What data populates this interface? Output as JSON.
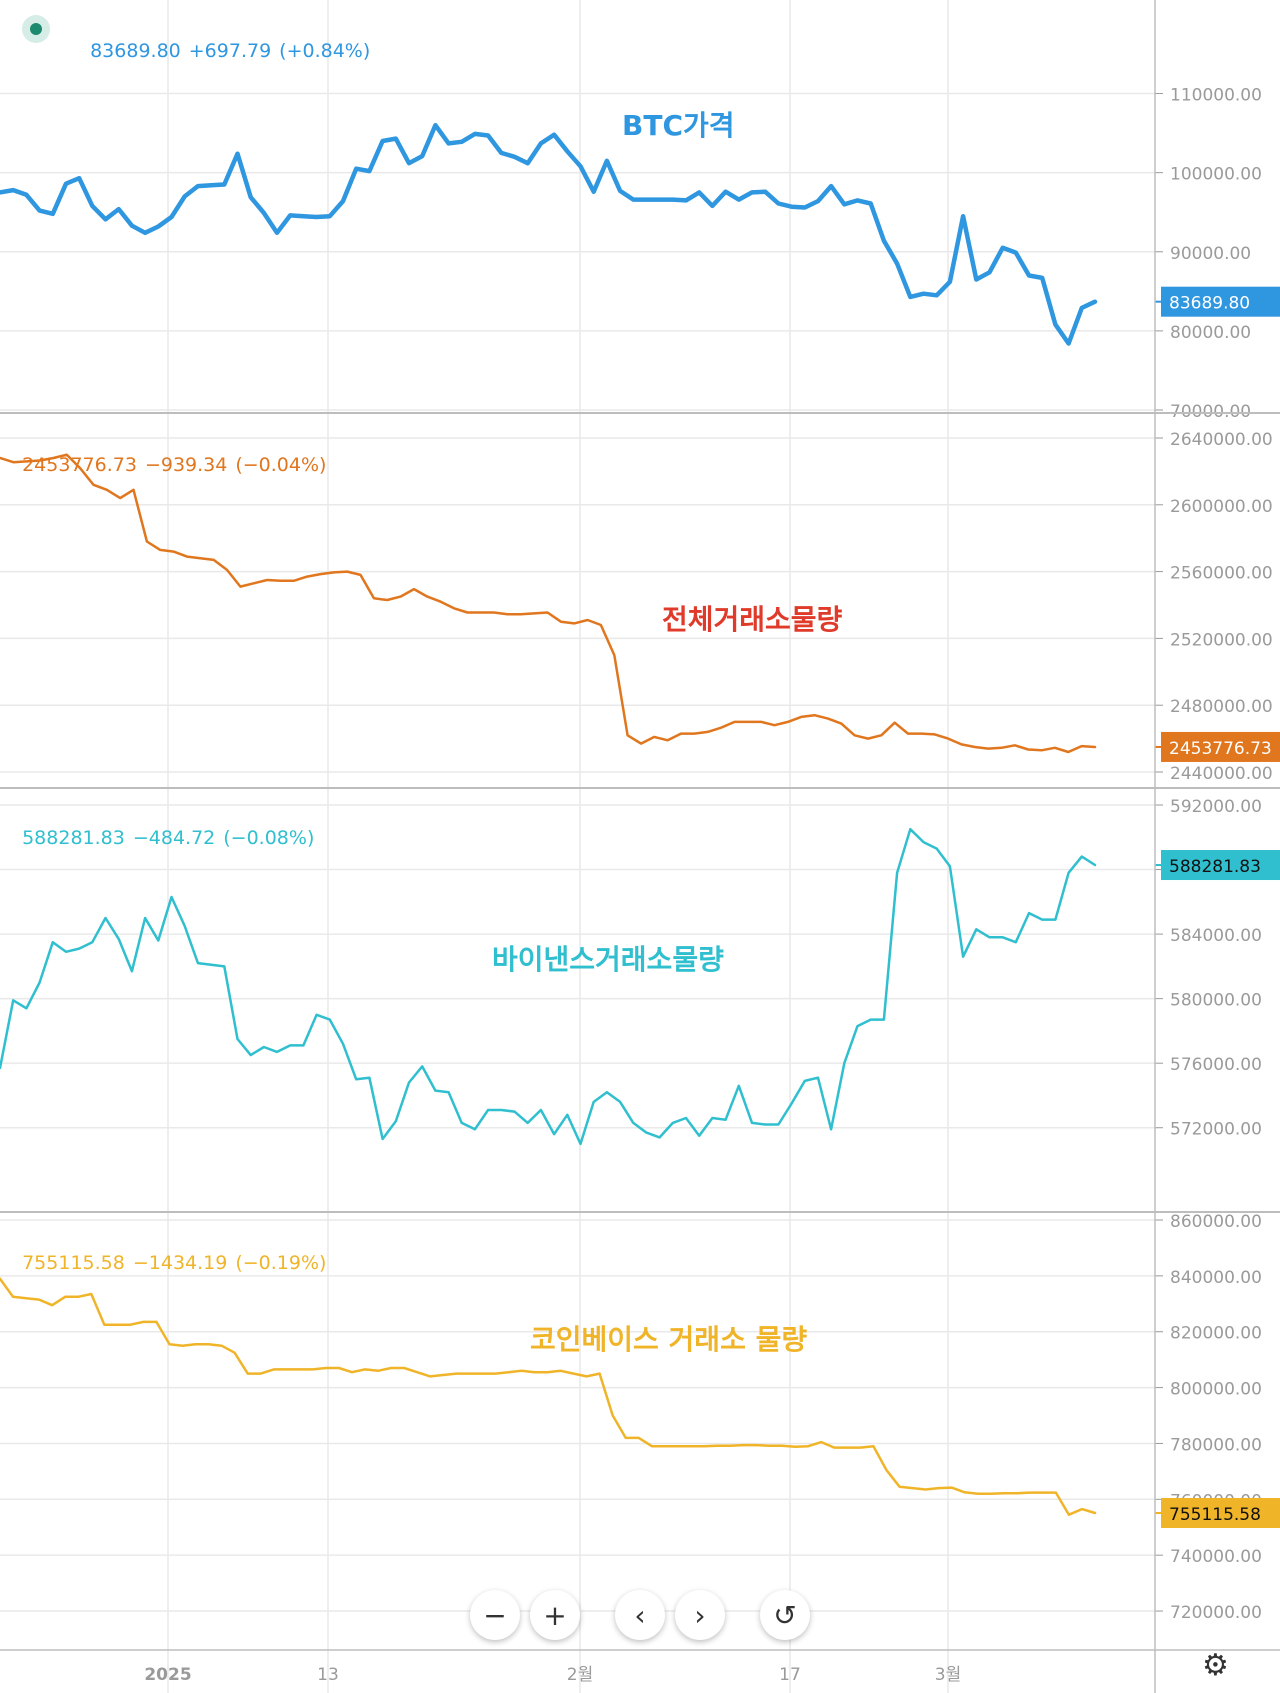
{
  "colors": {
    "btc": "#2f96e0",
    "total": "#e0761e",
    "binance": "#2fbfcf",
    "coinbase": "#f0b429",
    "grid": "#e9e9e9",
    "axis_text": "#9a9a9a",
    "divider": "#bdbdbd"
  },
  "panels": [
    {
      "header": {
        "value": "83689.80",
        "change": "+697.79",
        "pct": "(+0.84%)"
      },
      "annotation": "BTC가격",
      "badge": "83689.80"
    },
    {
      "header": {
        "value": "2453776.73",
        "change": "−939.34",
        "pct": "(−0.04%)"
      },
      "annotation": "전체거래소물량",
      "badge": "2453776.73"
    },
    {
      "header": {
        "value": "588281.83",
        "change": "−484.72",
        "pct": "(−0.08%)"
      },
      "annotation": "바이낸스거래소물량",
      "badge": "588281.83"
    },
    {
      "header": {
        "value": "755115.58",
        "change": "−1434.19",
        "pct": "(−0.19%)"
      },
      "annotation": "코인베이스 거래소 물량",
      "badge": "755115.58"
    }
  ],
  "x_axis_labels": [
    "2025",
    "13",
    "2월",
    "17",
    "3월"
  ],
  "icons": {
    "zoom_out": "minus-icon",
    "zoom_in": "plus-icon",
    "back": "chevron-left-icon",
    "forward": "chevron-right-icon",
    "reset": "reset-icon",
    "settings": "gear-icon"
  },
  "chart_data": [
    {
      "type": "line",
      "series": [
        {
          "name": "BTC가격",
          "color": "#2f96e0"
        }
      ],
      "ylim": [
        70000,
        115000
      ],
      "yticks": [
        "110000.00",
        "100000.00",
        "90000.00",
        "80000.00",
        "70000.00"
      ],
      "ytick_values": [
        110000,
        100000,
        90000,
        80000,
        70000
      ],
      "values": [
        97500,
        97800,
        97200,
        95200,
        94800,
        98600,
        99300,
        95800,
        94100,
        95400,
        93300,
        92400,
        93200,
        94400,
        97000,
        98300,
        98400,
        98500,
        102400,
        96900,
        94900,
        92400,
        94600,
        94500,
        94400,
        94500,
        96400,
        100500,
        100200,
        104000,
        104300,
        101200,
        102100,
        106000,
        103700,
        103900,
        104900,
        104700,
        102500,
        102000,
        101200,
        103700,
        104800,
        102700,
        100800,
        97600,
        101500,
        97700,
        96600,
        96600,
        96600,
        96600,
        96500,
        97500,
        95800,
        97600,
        96600,
        97500,
        97600,
        96100,
        95700,
        95600,
        96400,
        98300,
        96000,
        96500,
        96100,
        91400,
        88500,
        84300,
        84700,
        84500,
        86200,
        94500,
        86500,
        87400,
        90500,
        89900,
        87000,
        86700,
        80800,
        78400,
        82900,
        83690
      ]
    },
    {
      "type": "line",
      "series": [
        {
          "name": "전체거래소물량",
          "color": "#e0761e"
        }
      ],
      "ylim": [
        2440000,
        2640000
      ],
      "yticks": [
        "2640000.00",
        "2600000.00",
        "2560000.00",
        "2520000.00",
        "2480000.00",
        "2440000.00"
      ],
      "ytick_values": [
        2640000,
        2600000,
        2560000,
        2520000,
        2480000,
        2440000
      ],
      "values": [
        2628000,
        2625500,
        2626000,
        2626500,
        2628000,
        2630000,
        2622000,
        2612000,
        2609000,
        2604000,
        2609000,
        2578000,
        2573000,
        2572000,
        2569000,
        2568000,
        2567000,
        2561000,
        2551000,
        2553000,
        2555000,
        2554500,
        2554500,
        2557000,
        2558500,
        2559500,
        2560000,
        2558000,
        2544000,
        2543000,
        2545000,
        2549500,
        2545000,
        2542000,
        2538000,
        2535500,
        2535500,
        2535500,
        2534500,
        2534500,
        2535000,
        2535500,
        2530000,
        2529000,
        2531000,
        2528000,
        2510000,
        2462000,
        2457000,
        2461000,
        2459000,
        2463000,
        2463000,
        2464000,
        2466500,
        2470000,
        2470000,
        2470000,
        2468000,
        2470000,
        2473000,
        2474000,
        2472000,
        2469000,
        2462000,
        2460000,
        2462000,
        2469500,
        2463000,
        2463000,
        2462500,
        2460000,
        2456500,
        2455000,
        2454000,
        2454500,
        2456000,
        2453500,
        2453000,
        2454500,
        2452000,
        2455500,
        2455000
      ]
    },
    {
      "type": "line",
      "series": [
        {
          "name": "바이낸스거래소물량",
          "color": "#2fbfcf"
        }
      ],
      "ylim": [
        570000,
        592000
      ],
      "yticks": [
        "592000.00",
        "588000.00",
        "584000.00",
        "580000.00",
        "576000.00",
        "572000.00"
      ],
      "ytick_values": [
        592000,
        588000,
        584000,
        580000,
        576000,
        572000
      ],
      "values": [
        575700,
        579900,
        579400,
        581000,
        583500,
        582900,
        583100,
        583500,
        585000,
        583700,
        581700,
        585000,
        583600,
        586300,
        584500,
        582200,
        582100,
        582000,
        577500,
        576500,
        577000,
        576700,
        577100,
        577100,
        579000,
        578700,
        577200,
        575000,
        575100,
        571300,
        572400,
        574800,
        575800,
        574300,
        574200,
        572300,
        571900,
        573100,
        573100,
        573000,
        572300,
        573100,
        571600,
        572800,
        571000,
        573600,
        574200,
        573600,
        572300,
        571700,
        571400,
        572300,
        572600,
        571500,
        572600,
        572500,
        574600,
        572300,
        572200,
        572200,
        573500,
        574900,
        575100,
        571900,
        576000,
        578300,
        578700,
        578700,
        587800,
        590500,
        589700,
        589300,
        588200,
        582600,
        584300,
        583800,
        583800,
        583500,
        585300,
        584900,
        584900,
        587800,
        588800,
        588280
      ]
    },
    {
      "type": "line",
      "series": [
        {
          "name": "코인베이스 거래소 물량",
          "color": "#f0b429"
        }
      ],
      "ylim": [
        715000,
        860000
      ],
      "yticks": [
        "860000.00",
        "840000.00",
        "820000.00",
        "800000.00",
        "780000.00",
        "760000.00",
        "740000.00",
        "720000.00"
      ],
      "ytick_values": [
        860000,
        840000,
        820000,
        800000,
        780000,
        760000,
        740000,
        720000
      ],
      "values": [
        839000,
        832500,
        832000,
        831500,
        829500,
        832500,
        832500,
        833500,
        822500,
        822500,
        822500,
        823500,
        823500,
        815500,
        815000,
        815500,
        815500,
        815000,
        812500,
        805000,
        805000,
        806500,
        806500,
        806500,
        806500,
        807000,
        807000,
        805500,
        806500,
        806000,
        807000,
        807000,
        805500,
        804000,
        804500,
        805000,
        805000,
        805000,
        805000,
        805500,
        806000,
        805500,
        805500,
        806000,
        805000,
        804000,
        805000,
        790000,
        782000,
        782000,
        779000,
        779000,
        779000,
        779000,
        779000,
        779200,
        779200,
        779400,
        779400,
        779200,
        779200,
        778800,
        779000,
        780500,
        778500,
        778500,
        778500,
        779000,
        770500,
        764500,
        764000,
        763500,
        764000,
        764200,
        762500,
        762000,
        762000,
        762200,
        762200,
        762400,
        762400,
        762400,
        754500,
        756500,
        755100
      ]
    }
  ]
}
